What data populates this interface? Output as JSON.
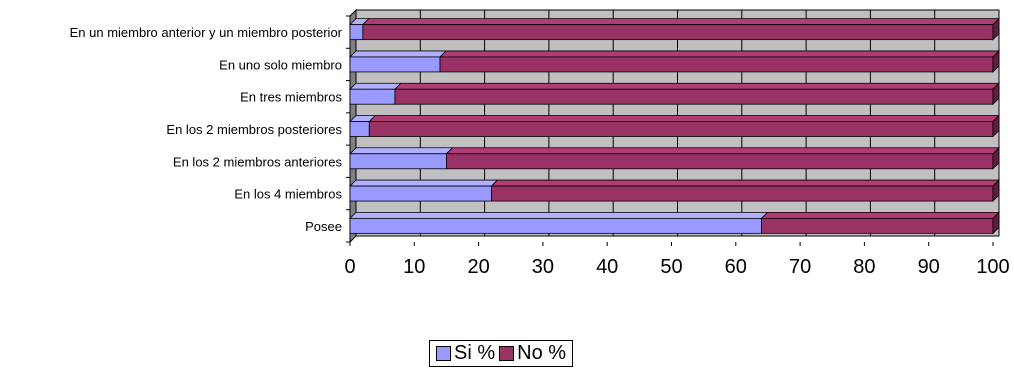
{
  "chart_data": {
    "type": "bar",
    "orientation": "horizontal",
    "stacked": true,
    "style": "3d",
    "categories": [
      "Posee",
      "En los 4 miembros",
      "En los 2 miembros anteriores",
      "En los 2 miembros posteriores",
      "En tres miembros",
      "En uno solo miembro",
      "En un miembro anterior y un miembro posterior"
    ],
    "series": [
      {
        "name": "Si %",
        "color": "#9999ff",
        "values": [
          64,
          22,
          15,
          3,
          7,
          14,
          2
        ]
      },
      {
        "name": "No %",
        "color": "#993366",
        "values": [
          36,
          78,
          85,
          97,
          93,
          86,
          98
        ]
      }
    ],
    "xlim": [
      0,
      100
    ],
    "xticks": [
      "0",
      "10",
      "20",
      "30",
      "40",
      "50",
      "60",
      "70",
      "80",
      "90",
      "100"
    ],
    "grid": true,
    "plot_background": "#c0c0c0",
    "legend_position": "bottom"
  }
}
